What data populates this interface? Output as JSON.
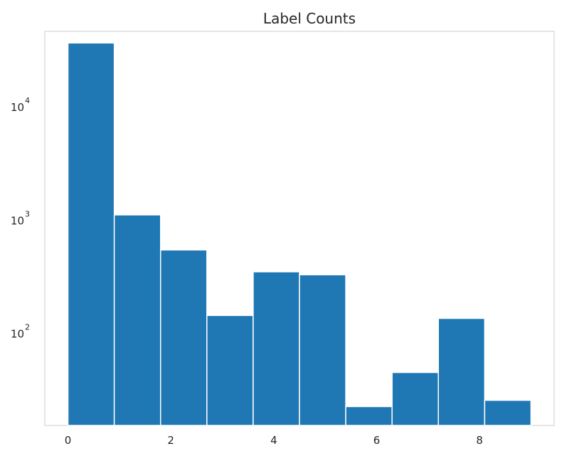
{
  "chart_data": {
    "type": "bar",
    "title": "Label Counts",
    "xlabel": "",
    "ylabel": "",
    "y_scale": "log",
    "grid": false,
    "x_ticks": [
      {
        "value": 0,
        "label": "0"
      },
      {
        "value": 2,
        "label": "2"
      },
      {
        "value": 4,
        "label": "4"
      },
      {
        "value": 6,
        "label": "6"
      },
      {
        "value": 8,
        "label": "8"
      }
    ],
    "y_ticks": [
      {
        "value": 100,
        "base": "10",
        "exp": "2"
      },
      {
        "value": 1000,
        "base": "10",
        "exp": "3"
      },
      {
        "value": 10000,
        "base": "10",
        "exp": "4"
      }
    ],
    "xlim": [
      -0.45,
      9.45
    ],
    "ylim": [
      15,
      45000
    ],
    "bin_width": 0.9,
    "bars": [
      {
        "x": 0.0,
        "value": 35500
      },
      {
        "x": 0.9,
        "value": 1080
      },
      {
        "x": 1.8,
        "value": 530
      },
      {
        "x": 2.7,
        "value": 140
      },
      {
        "x": 3.6,
        "value": 340
      },
      {
        "x": 4.5,
        "value": 320
      },
      {
        "x": 5.4,
        "value": 22
      },
      {
        "x": 6.3,
        "value": 44
      },
      {
        "x": 7.2,
        "value": 132
      },
      {
        "x": 8.1,
        "value": 25
      }
    ],
    "colors": {
      "bar": "#1f77b4",
      "bar_edge": "#ffffff",
      "frame": "#cccccc"
    }
  }
}
